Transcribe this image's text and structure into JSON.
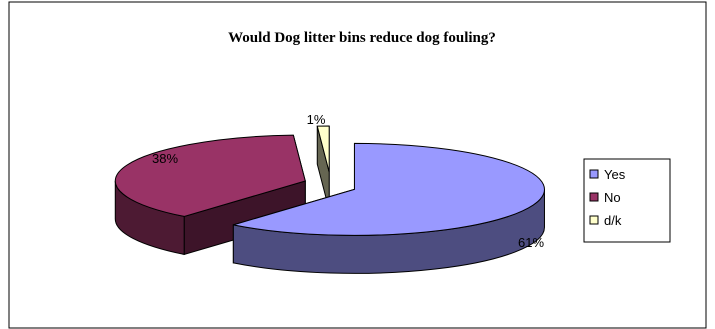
{
  "chart_data": {
    "type": "pie",
    "title": "Would Dog litter bins reduce dog fouling?",
    "categories": [
      "Yes",
      "No",
      "d/k"
    ],
    "values": [
      61,
      38,
      1
    ],
    "data_labels": [
      "61%",
      "38%",
      "1%"
    ],
    "colors": {
      "Yes": "#9999ff",
      "No": "#993366",
      "d/k": "#ffffcc"
    },
    "exploded": true,
    "three_d": true,
    "legend_position": "right"
  }
}
